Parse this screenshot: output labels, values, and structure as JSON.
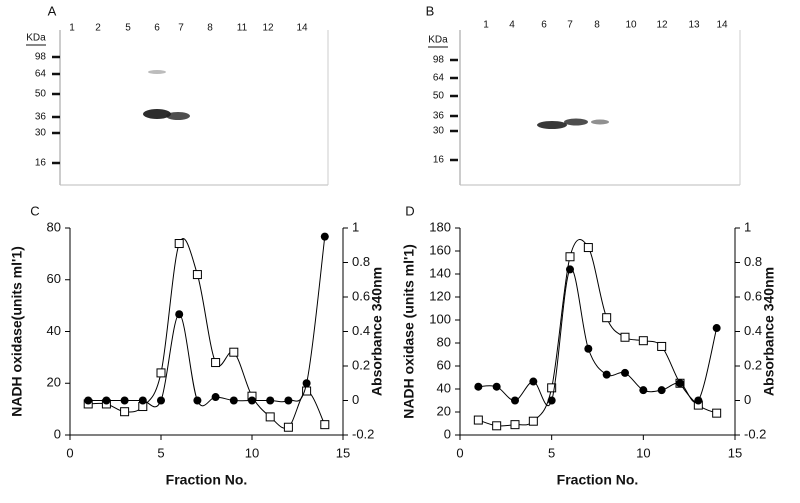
{
  "gels": [
    {
      "label": "A",
      "unit": "KDa",
      "lanes": [
        "1",
        "2",
        "5",
        "6",
        "7",
        "8",
        "11",
        "12",
        "14"
      ],
      "markers": [
        98,
        64,
        50,
        36,
        30,
        16
      ]
    },
    {
      "label": "B",
      "unit": "KDa",
      "lanes": [
        "1",
        "4",
        "6",
        "7",
        "8",
        "10",
        "12",
        "13",
        "14"
      ],
      "markers": [
        98,
        64,
        50,
        36,
        30,
        16
      ]
    }
  ],
  "chart_data": [
    {
      "type": "line",
      "panel": "C",
      "xlabel": "Fraction No.",
      "ylabel": "NADH oxidase(units ml'1)",
      "y2label": "Absorbance 340nm",
      "x": [
        1,
        2,
        3,
        4,
        5,
        6,
        7,
        8,
        9,
        10,
        11,
        12,
        13,
        14
      ],
      "xlim": [
        0,
        15
      ],
      "xticks": [
        0,
        5,
        10,
        15
      ],
      "ylim": [
        0,
        80
      ],
      "yticks": [
        0,
        20,
        40,
        60,
        80
      ],
      "y2lim": [
        -0.2,
        1
      ],
      "y2ticks": [
        -0.2,
        0,
        0.2,
        0.4,
        0.6,
        0.8,
        1
      ],
      "series": [
        {
          "color": "#000000",
          "marker": "square",
          "values": [
            12,
            12,
            9,
            11,
            24,
            74,
            62,
            28,
            32,
            15,
            7,
            3,
            17,
            4
          ]
        },
        {
          "color": "#000000",
          "marker": "circle",
          "axis": "y2",
          "values": [
            0,
            0,
            0,
            0,
            0,
            0.5,
            0,
            0.02,
            0,
            0,
            0,
            0,
            0.1,
            0.95
          ]
        }
      ]
    },
    {
      "type": "line",
      "panel": "D",
      "xlabel": "Fraction No.",
      "ylabel": "NADH oxidase (units ml'1)",
      "y2label": "Absorbance 340nm",
      "x": [
        1,
        2,
        3,
        4,
        5,
        6,
        7,
        8,
        9,
        10,
        11,
        12,
        13,
        14
      ],
      "xlim": [
        0,
        15
      ],
      "xticks": [
        0,
        5,
        10,
        15
      ],
      "ylim": [
        0,
        180
      ],
      "yticks": [
        0,
        20,
        40,
        60,
        80,
        100,
        120,
        140,
        160,
        180
      ],
      "y2lim": [
        -0.2,
        1
      ],
      "y2ticks": [
        -0.2,
        0,
        0.2,
        0.4,
        0.6,
        0.8,
        1
      ],
      "series": [
        {
          "color": "#000000",
          "marker": "square",
          "values": [
            13,
            8,
            9,
            12,
            41,
            155,
            163,
            102,
            85,
            82,
            77,
            45,
            26,
            19
          ]
        },
        {
          "color": "#000000",
          "marker": "circle",
          "axis": "y2",
          "values": [
            0.08,
            0.08,
            0,
            0.11,
            0,
            0.76,
            0.3,
            0.15,
            0.16,
            0.06,
            0.06,
            0.1,
            0,
            0.42
          ]
        }
      ]
    }
  ]
}
